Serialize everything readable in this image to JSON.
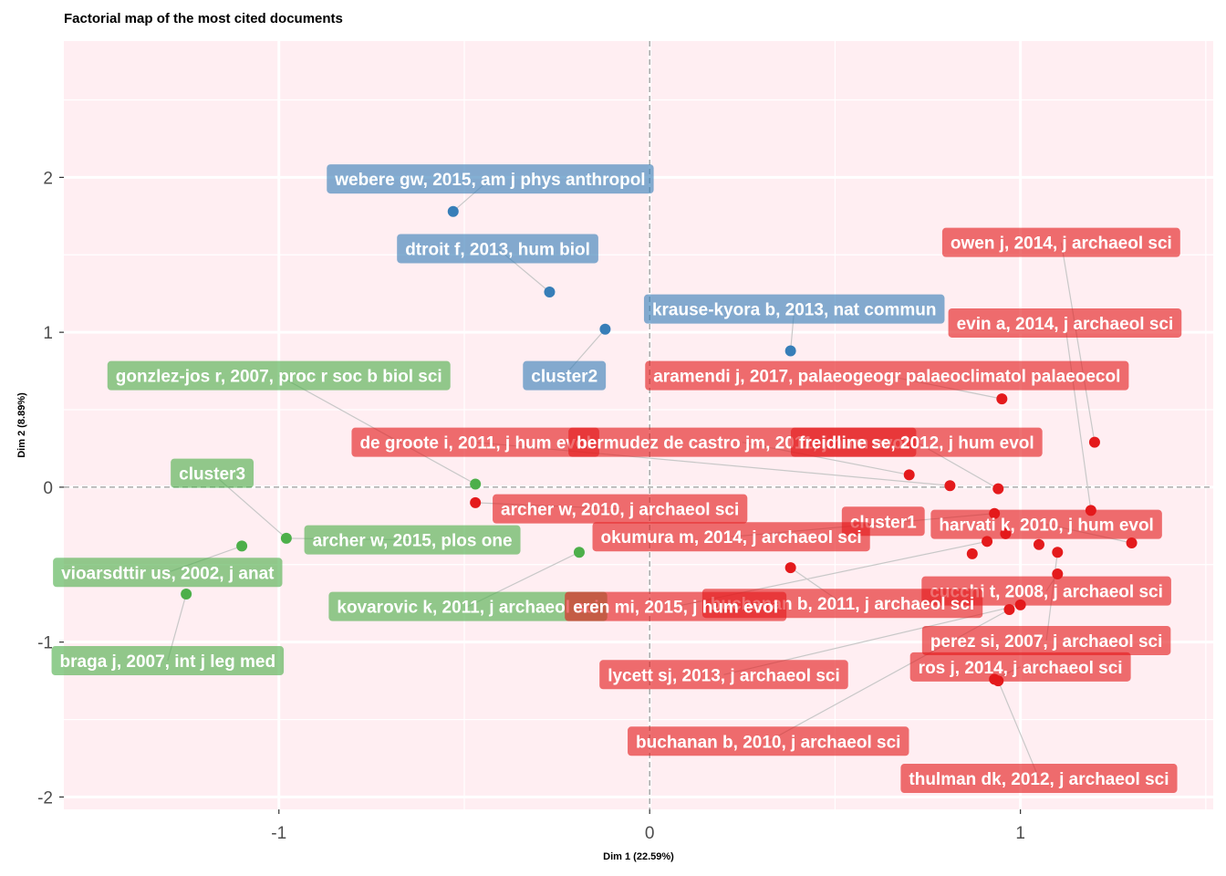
{
  "chart_data": {
    "type": "scatter",
    "title": "Factorial map of the most cited documents",
    "xlabel": "Dim 1 (22.59%)",
    "ylabel": "Dim 2 (8.89%)",
    "xlim": [
      -1.58,
      1.52
    ],
    "ylim": [
      -2.08,
      2.88
    ],
    "x_ticks": [
      {
        "value": -1,
        "label": "-1"
      },
      {
        "value": 0,
        "label": "0"
      },
      {
        "value": 1,
        "label": "1"
      }
    ],
    "y_ticks": [
      {
        "value": -2,
        "label": "-2"
      },
      {
        "value": -1,
        "label": "-1"
      },
      {
        "value": 0,
        "label": "0"
      },
      {
        "value": 1,
        "label": "1"
      },
      {
        "value": 2,
        "label": "2"
      }
    ],
    "grid": true,
    "colors": {
      "cluster1": "#E41A1C",
      "cluster2": "#377EB8",
      "cluster3": "#4DAF4A",
      "panel": "#FFEEF2"
    },
    "clusters": [
      {
        "name": "cluster1",
        "color": "#E41A1C",
        "label_pos": [
          0.63,
          -0.22
        ]
      },
      {
        "name": "cluster2",
        "color": "#377EB8",
        "label_pos": [
          -0.23,
          0.72
        ]
      },
      {
        "name": "cluster3",
        "color": "#4DAF4A",
        "label_pos": [
          -1.18,
          0.09
        ]
      }
    ],
    "points": [
      {
        "label": "webere gw, 2015, am j phys anthropol",
        "x": -0.53,
        "y": 1.78,
        "cluster": 2,
        "label_pos": [
          -0.43,
          1.99
        ]
      },
      {
        "label": "dtroit f, 2013, hum biol",
        "x": -0.27,
        "y": 1.26,
        "cluster": 2,
        "label_pos": [
          -0.41,
          1.54
        ]
      },
      {
        "label": "krause-kyora b, 2013, nat commun",
        "x": 0.38,
        "y": 0.88,
        "cluster": 2,
        "label_pos": [
          0.39,
          1.15
        ]
      },
      {
        "label": "cluster2 hidden point",
        "x": -0.12,
        "y": 1.02,
        "cluster": 2,
        "label_pos": null
      },
      {
        "label": "gonzlez-jos r, 2007, proc r soc b biol sci",
        "x": -0.47,
        "y": 0.02,
        "cluster": 3,
        "label_pos": [
          -1.0,
          0.72
        ]
      },
      {
        "label": "archer w, 2015, plos one",
        "x": -0.98,
        "y": -0.33,
        "cluster": 3,
        "label_pos": [
          -0.64,
          -0.34
        ]
      },
      {
        "label": "vioarsdttir us, 2002, j anat",
        "x": -1.1,
        "y": -0.38,
        "cluster": 3,
        "label_pos": [
          -1.3,
          -0.55
        ]
      },
      {
        "label": "kovarovic k, 2011, j archaeol sci",
        "x": -0.19,
        "y": -0.42,
        "cluster": 3,
        "label_pos": [
          -0.49,
          -0.77
        ]
      },
      {
        "label": "braga j, 2007, int j leg med",
        "x": -1.25,
        "y": -0.69,
        "cluster": 3,
        "label_pos": [
          -1.3,
          -1.12
        ]
      },
      {
        "label": "owen j, 2014, j archaeol sci",
        "x": 1.2,
        "y": 0.29,
        "cluster": 1,
        "label_pos": [
          1.11,
          1.58
        ]
      },
      {
        "label": "evin a, 2014, j archaeol sci",
        "x": 1.19,
        "y": -0.15,
        "cluster": 1,
        "label_pos": [
          1.12,
          1.06
        ]
      },
      {
        "label": "aramendi j, 2017, palaeogeogr palaeoclimatol palaeoecol",
        "x": 0.95,
        "y": 0.57,
        "cluster": 1,
        "label_pos": [
          0.64,
          0.72
        ]
      },
      {
        "label": "de groote i, 2011, j hum evol",
        "x": 0.81,
        "y": 0.01,
        "cluster": 1,
        "label_pos": [
          -0.47,
          0.29
        ]
      },
      {
        "label": "bermudez de castro jm, 2011, j hum evol",
        "x": 0.7,
        "y": 0.08,
        "cluster": 1,
        "label_pos": [
          0.25,
          0.29
        ]
      },
      {
        "label": "freidline se, 2012, j hum evol",
        "x": 0.94,
        "y": -0.01,
        "cluster": 1,
        "label_pos": [
          0.72,
          0.29
        ]
      },
      {
        "label": "archer w, 2010, j archaeol sci",
        "x": -0.47,
        "y": -0.1,
        "cluster": 1,
        "label_pos": [
          -0.08,
          -0.14
        ]
      },
      {
        "label": "harvati k, 2010, j hum evol",
        "x": 1.3,
        "y": -0.36,
        "cluster": 1,
        "label_pos": [
          1.07,
          -0.24
        ]
      },
      {
        "label": "okumura m, 2014, j archaeol sci",
        "x": 0.93,
        "y": -0.17,
        "cluster": 1,
        "label_pos": [
          0.22,
          -0.32
        ]
      },
      {
        "label": "cucchi t, 2008, j archaeol sci",
        "x": 1.1,
        "y": -0.56,
        "cluster": 1,
        "label_pos": [
          1.07,
          -0.67
        ]
      },
      {
        "label": "buchanan b, 2011, j archaeol sci",
        "x": 0.38,
        "y": -0.52,
        "cluster": 1,
        "label_pos": [
          0.52,
          -0.75
        ]
      },
      {
        "label": "eren mi, 2015, j hum evol",
        "x": 0.91,
        "y": -0.35,
        "cluster": 1,
        "label_pos": [
          0.07,
          -0.77
        ]
      },
      {
        "label": "perez si, 2007, j archaeol sci",
        "x": 1.1,
        "y": -0.42,
        "cluster": 1,
        "label_pos": [
          1.07,
          -0.99
        ]
      },
      {
        "label": "ros j, 2014, j archaeol sci",
        "x": 0.93,
        "y": -1.24,
        "cluster": 1,
        "label_pos": [
          1.0,
          -1.16
        ]
      },
      {
        "label": "lycett sj, 2013, j archaeol sci",
        "x": 1.0,
        "y": -0.76,
        "cluster": 1,
        "label_pos": [
          0.2,
          -1.21
        ]
      },
      {
        "label": "buchanan b, 2010, j archaeol sci",
        "x": 0.97,
        "y": -0.79,
        "cluster": 1,
        "label_pos": [
          0.32,
          -1.64
        ]
      },
      {
        "label": "thulman dk, 2012, j archaeol sci",
        "x": 0.94,
        "y": -1.25,
        "cluster": 1,
        "label_pos": [
          1.05,
          -1.88
        ]
      },
      {
        "label": "",
        "x": 0.87,
        "y": -0.43,
        "cluster": 1,
        "label_pos": null
      },
      {
        "label": "",
        "x": 0.96,
        "y": -0.3,
        "cluster": 1,
        "label_pos": null
      },
      {
        "label": "",
        "x": 1.05,
        "y": -0.37,
        "cluster": 1,
        "label_pos": null
      }
    ]
  }
}
